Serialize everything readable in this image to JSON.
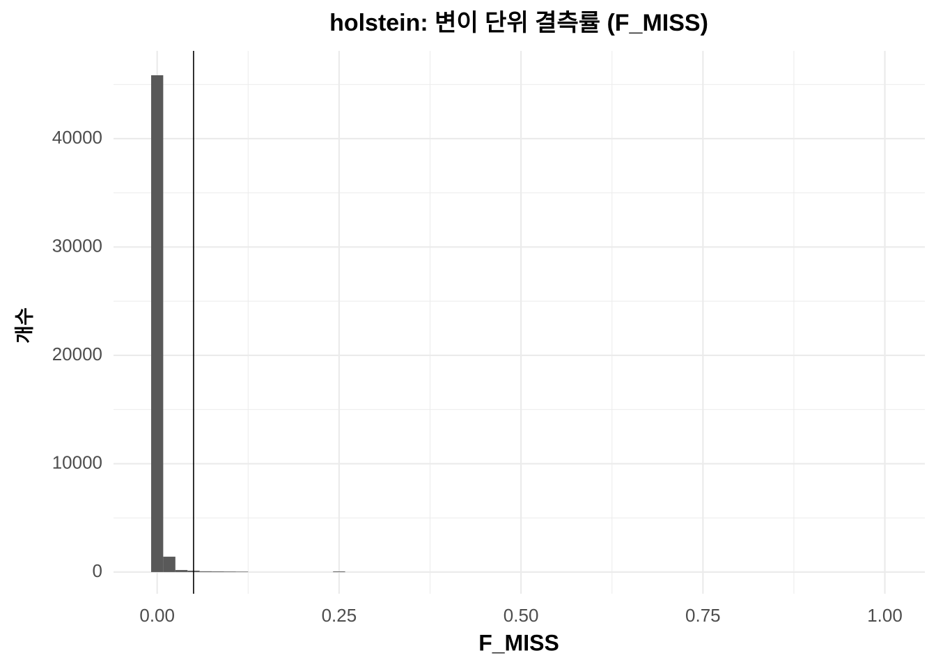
{
  "chart_data": {
    "type": "histogram",
    "title": "holstein: 변이 단위 결측률 (F_MISS)",
    "x_label": "F_MISS",
    "y_label": "개수",
    "bins": [
      -0.0083,
      0.0083,
      0.025,
      0.0417,
      0.0583,
      0.075,
      0.0917,
      0.1083,
      0.125,
      0.1417,
      0.1583,
      0.175,
      0.1917,
      0.2083,
      0.225,
      0.2417,
      0.2583
    ],
    "values": [
      45850,
      1420,
      190,
      130,
      70,
      60,
      50,
      40,
      0,
      0,
      0,
      0,
      0,
      0,
      0,
      60
    ],
    "color": "#595959",
    "vline": 0.05,
    "vline_color": "#000000",
    "xlim": [
      -0.06,
      1.055
    ],
    "ylim": [
      -2000,
      48100
    ],
    "xticks": [
      {
        "value": 0,
        "label": "0.00"
      },
      {
        "value": 0.25,
        "label": "0.25"
      },
      {
        "value": 0.5,
        "label": "0.50"
      },
      {
        "value": 0.75,
        "label": "0.75"
      },
      {
        "value": 1,
        "label": "1.00"
      }
    ],
    "yticks": [
      0,
      10000,
      20000,
      30000,
      40000
    ],
    "x_minor_ticks": [
      0.125,
      0.375,
      0.625,
      0.875
    ],
    "y_minor_ticks": [
      5000,
      15000,
      25000,
      35000,
      45000
    ],
    "grid": true
  }
}
